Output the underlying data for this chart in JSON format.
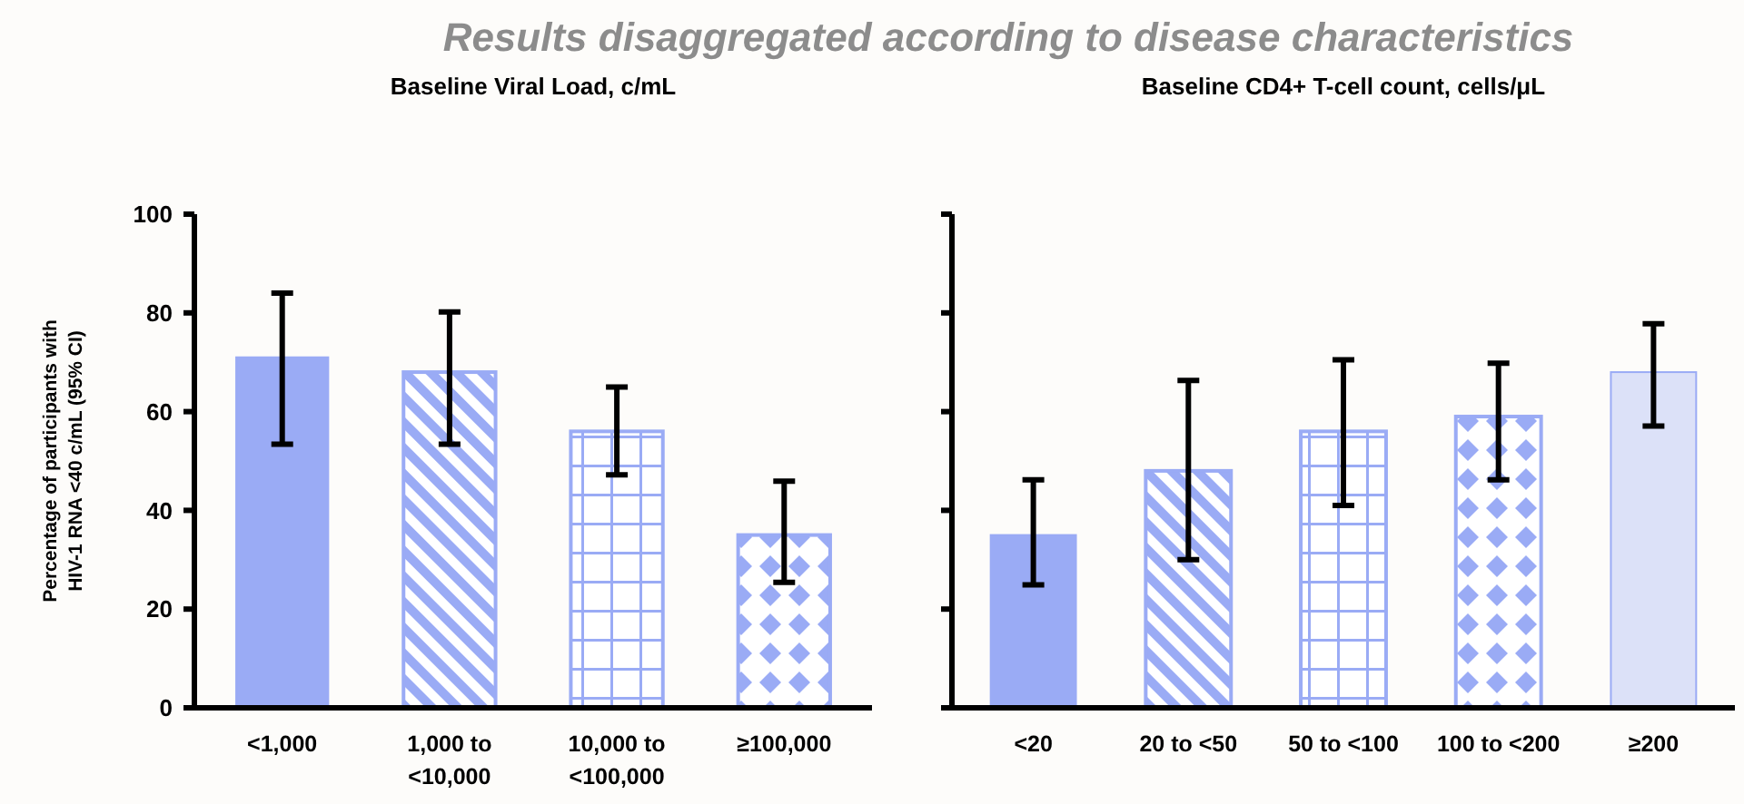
{
  "chart_data": [
    {
      "type": "bar",
      "title": "Baseline Viral Load, c/mL",
      "ylabel": "Percentage of participants with HIV-1 RNA <40 c/mL (95% CI)",
      "annotations": [
        "Results disaggregated according to disease characteristics"
      ],
      "categories": [
        "<1,000",
        "1,000 to <10,000",
        "10,000 to <100,000",
        "≥100,000"
      ],
      "values": [
        71,
        68,
        56,
        35
      ],
      "errors": [
        [
          53.4,
          84
        ],
        [
          53.4,
          80.2
        ],
        [
          47.2,
          65
        ],
        [
          25.4,
          45.9
        ]
      ],
      "colors": [
        "#9aabf5",
        "#9aabf5",
        "#9aabf5",
        "#9aabf5"
      ],
      "ylim": [
        0,
        100
      ],
      "yticks": [
        0,
        20,
        40,
        60,
        80,
        100
      ],
      "grid": false
    },
    {
      "type": "bar",
      "title": "Baseline CD4+ T-cell count, cells/μL",
      "categories": [
        "<20",
        "20 to <50",
        "50 to <100",
        "100 to <200",
        "≥200"
      ],
      "values": [
        35,
        48,
        56,
        59,
        68
      ],
      "errors": [
        [
          24.9,
          46.2
        ],
        [
          30,
          66.3
        ],
        [
          41,
          70.5
        ],
        [
          46.2,
          69.8
        ],
        [
          57.1,
          77.8
        ]
      ],
      "colors": [
        "#9aabf5",
        "#9aabf5",
        "#9aabf5",
        "#9aabf5",
        "#dce1f8"
      ],
      "ylim": [
        0,
        100
      ],
      "yticks": [
        0,
        20,
        40,
        60,
        80,
        100
      ],
      "tick_labels": "x",
      "grid": false
    }
  ]
}
